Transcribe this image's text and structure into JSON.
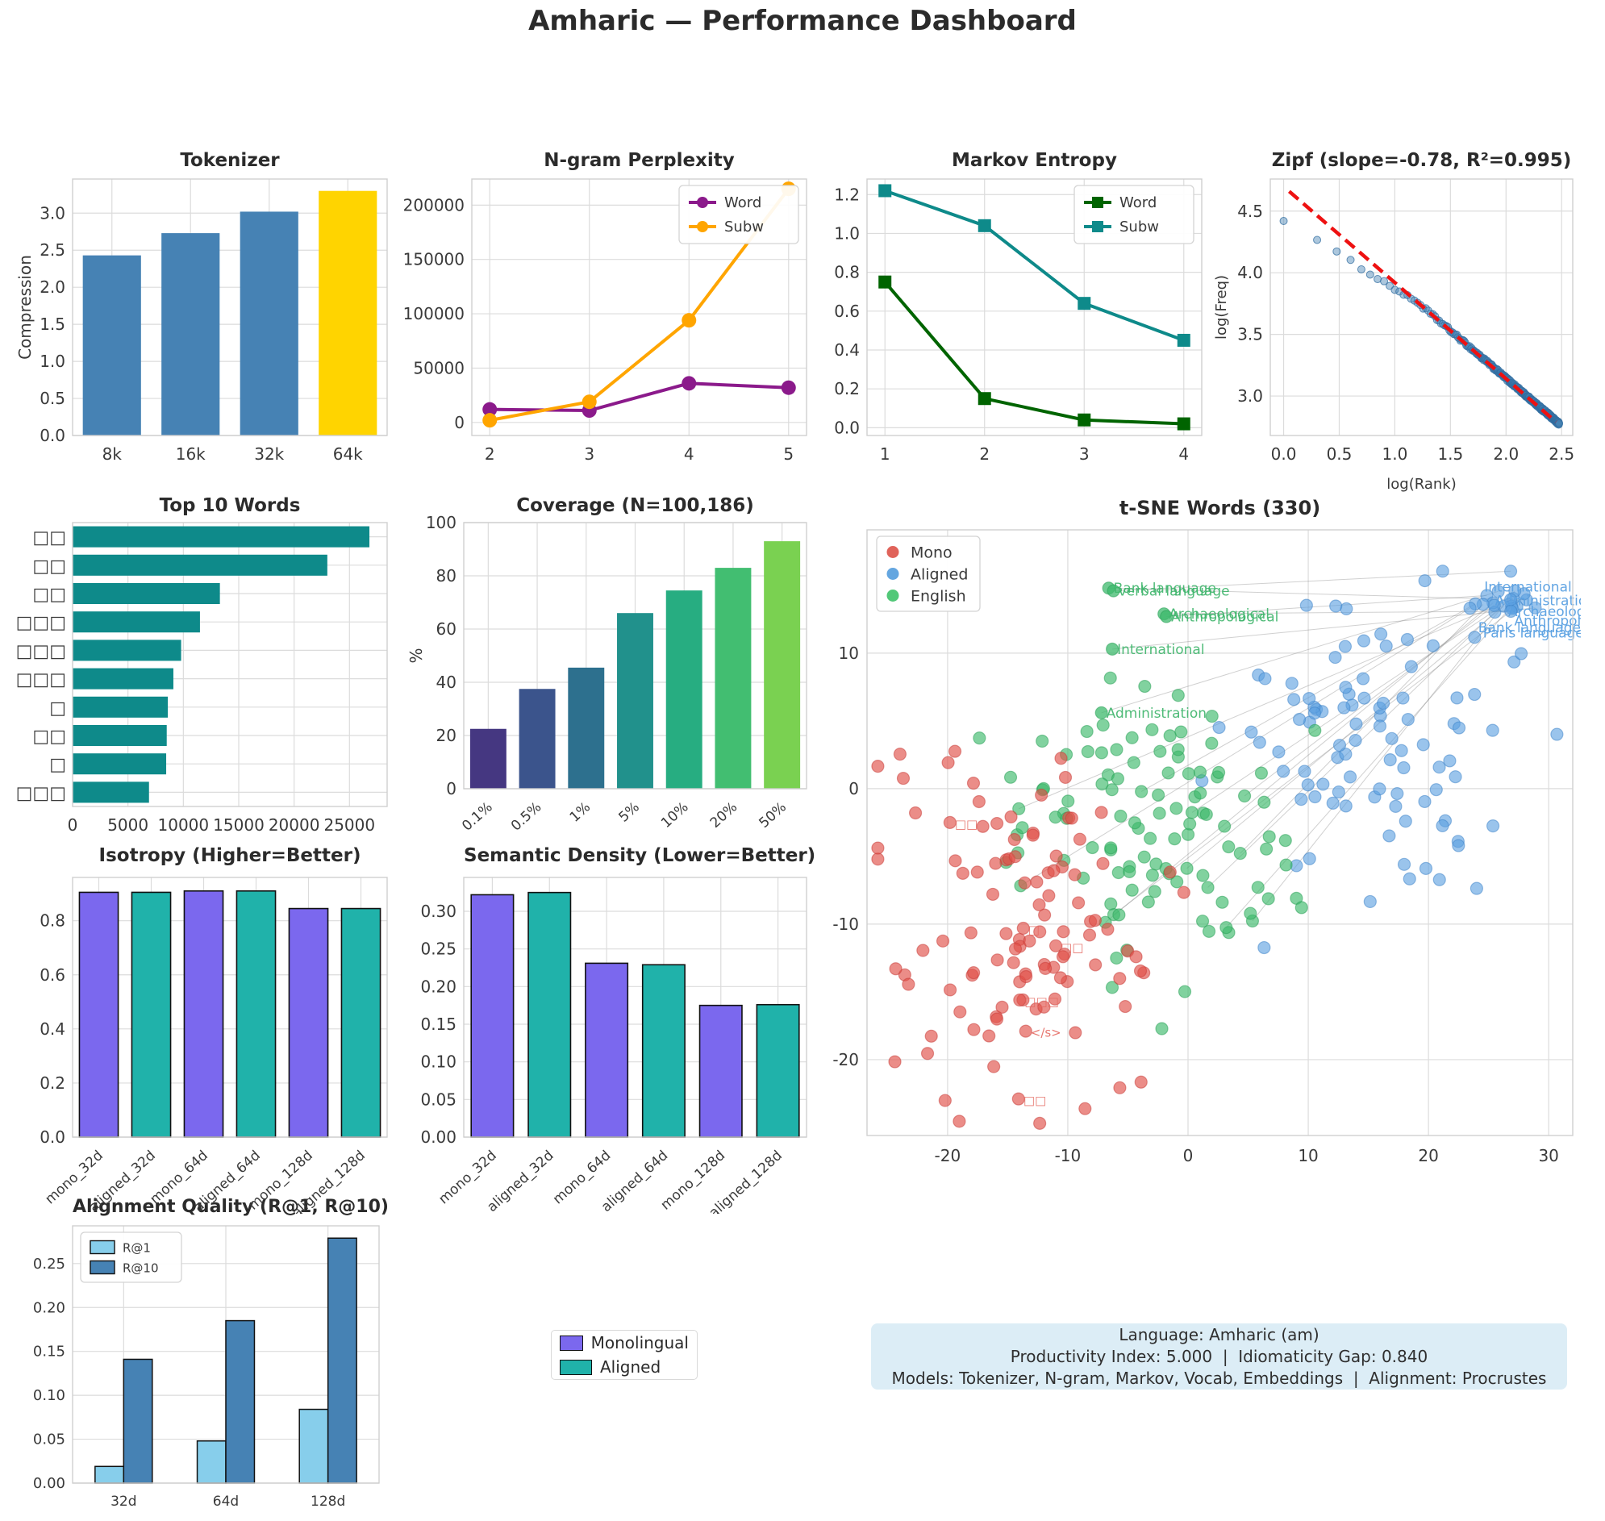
{
  "main_title": "Amharic — Performance Dashboard",
  "legend_box": {
    "entries": [
      {
        "label": "Monolingual",
        "color": "#7b68ee"
      },
      {
        "label": "Aligned",
        "color": "#20b2aa"
      }
    ]
  },
  "info_box": {
    "bg": "#dcedf6",
    "lines": [
      "Language: Amharic (am)",
      "Productivity Index: 5.000  |  Idiomaticity Gap: 0.840",
      "Models: Tokenizer, N-gram, Markov, Vocab, Embeddings  |  Alignment: Procrustes"
    ]
  },
  "chart_data": {
    "tokenizer": {
      "type": "bar",
      "title": "Tokenizer",
      "ylabel": "Compression",
      "categories": [
        "8k",
        "16k",
        "32k",
        "64k"
      ],
      "values": [
        2.43,
        2.73,
        3.02,
        3.3
      ],
      "colors": [
        "#4682b4",
        "#4682b4",
        "#4682b4",
        "#ffd400"
      ],
      "yticks": [
        0.0,
        0.5,
        1.0,
        1.5,
        2.0,
        2.5,
        3.0
      ],
      "ydec": 1,
      "ylim": [
        0,
        3.46
      ]
    },
    "ngram": {
      "type": "line",
      "title": "N-gram Perplexity",
      "x": [
        2,
        3,
        4,
        5
      ],
      "xlim": [
        1.82,
        5.18
      ],
      "series": [
        {
          "name": "Word",
          "color": "#8b1a8b",
          "marker": "circle",
          "values": [
            12000,
            11000,
            36000,
            32000
          ]
        },
        {
          "name": "Subw",
          "color": "#ffa500",
          "marker": "circle",
          "values": [
            2000,
            19000,
            94000,
            215000
          ]
        }
      ],
      "yticks": [
        0,
        50000,
        100000,
        150000,
        200000
      ],
      "ydec": 0,
      "ylim": [
        -12000,
        224000
      ],
      "legend_pos": "tr"
    },
    "markov": {
      "type": "line",
      "title": "Markov Entropy",
      "x": [
        1,
        2,
        3,
        4
      ],
      "xlim": [
        0.82,
        4.18
      ],
      "series": [
        {
          "name": "Word",
          "color": "#006400",
          "marker": "square",
          "values": [
            0.75,
            0.15,
            0.04,
            0.02
          ]
        },
        {
          "name": "Subw",
          "color": "#0e8a8a",
          "marker": "square",
          "values": [
            1.22,
            1.04,
            0.64,
            0.45
          ]
        }
      ],
      "yticks": [
        0.0,
        0.2,
        0.4,
        0.6,
        0.8,
        1.0,
        1.2
      ],
      "ydec": 1,
      "ylim": [
        -0.04,
        1.28
      ],
      "legend_pos": "tr"
    },
    "zipf": {
      "type": "scatter",
      "title": "Zipf (slope=-0.78, R²=0.995)",
      "xlabel": "log(Rank)",
      "ylabel": "log(Freq)",
      "xticks": [
        0.0,
        0.5,
        1.0,
        1.5,
        2.0,
        2.5
      ],
      "yticks": [
        3.0,
        3.5,
        4.0,
        4.5
      ],
      "xlim": [
        -0.12,
        2.6
      ],
      "ylim": [
        2.68,
        4.76
      ],
      "point_color": "rgba(70,130,180,0.45)",
      "point_edge": "rgba(50,110,160,0.75)",
      "fit": {
        "x1": 0.05,
        "y1": 4.66,
        "x2": 2.45,
        "y2": 2.79,
        "color": "#ee1111"
      },
      "model": {
        "ranks": 300,
        "break_x": 1.15,
        "a1": 4.43,
        "b1": 0.56,
        "a2": 4.688,
        "b2": 0.772,
        "jitter": 0.012
      }
    },
    "top_words": {
      "type": "hbar",
      "title": "Top 10 Words",
      "categories": [
        "□□",
        "□□",
        "□□",
        "□□□",
        "□□□",
        "□□□",
        "□",
        "□□",
        "□",
        "□□□"
      ],
      "values": [
        26800,
        23000,
        13300,
        11500,
        9800,
        9100,
        8600,
        8500,
        8450,
        6900
      ],
      "color": "#0e8a8a",
      "xticks": [
        0,
        5000,
        10000,
        15000,
        20000,
        25000
      ],
      "xlim": [
        0,
        28400
      ]
    },
    "coverage": {
      "type": "bar",
      "title": "Coverage (N=100,186)",
      "ylabel": "%",
      "categories": [
        "0.1%",
        "0.5%",
        "1%",
        "5%",
        "10%",
        "20%",
        "50%"
      ],
      "values": [
        22.5,
        37.5,
        45.5,
        66,
        74.5,
        83,
        93
      ],
      "colors": [
        "#453781",
        "#3b548c",
        "#2d708e",
        "#21918c",
        "#27ad81",
        "#42be71",
        "#7ad151"
      ],
      "yticks": [
        0,
        20,
        40,
        60,
        80,
        100
      ],
      "ydec": 0,
      "ylim": [
        0,
        100
      ],
      "rotate_cats": true
    },
    "tsne": {
      "type": "scatter_clusters",
      "title": "t-SNE Words (330)",
      "n_points": 330,
      "xlim": [
        -26.7,
        32.0
      ],
      "ylim": [
        -25.6,
        19.1
      ],
      "xticks": [
        -20,
        -10,
        0,
        10,
        20,
        30
      ],
      "yticks": [
        -20,
        -10,
        0,
        10
      ],
      "legend": [
        {
          "label": "Mono",
          "color": "#e0635a"
        },
        {
          "label": "Aligned",
          "color": "#64a6e0"
        },
        {
          "label": "English",
          "color": "#52c878"
        }
      ],
      "clusters": [
        {
          "name": "mono",
          "color": "rgba(224,80,72,0.65)",
          "edge": "rgba(200,60,55,0.5)",
          "n": 105,
          "cx": -13.5,
          "cy": -10.5,
          "sx": 5.6,
          "sy": 6.2
        },
        {
          "name": "english",
          "color": "rgba(62,186,108,0.65)",
          "edge": "rgba(40,160,85,0.5)",
          "n": 110,
          "cx": -3.0,
          "cy": -3.0,
          "sx": 5.8,
          "sy": 5.4
        },
        {
          "name": "aligned",
          "color": "rgba(92,160,224,0.62)",
          "edge": "rgba(60,130,200,0.5)",
          "n": 95,
          "cx": 14.5,
          "cy": 3.5,
          "sx": 6.2,
          "sy": 5.2
        },
        {
          "name": "aligned_tight",
          "color": "rgba(92,160,224,0.62)",
          "edge": "rgba(60,130,200,0.5)",
          "n": 20,
          "cx": 26.0,
          "cy": 13.8,
          "sx": 1.3,
          "sy": 0.9
        }
      ],
      "n_connections": 18,
      "annotations_green": [
        {
          "text": "Bank language",
          "x": -6.6,
          "y": 14.8
        },
        {
          "text": "verbal language",
          "x": -6.2,
          "y": 14.6
        },
        {
          "text": "Archaeological",
          "x": -2.0,
          "y": 12.9
        },
        {
          "text": "Anthropological",
          "x": -1.8,
          "y": 12.7
        },
        {
          "text": "International",
          "x": -6.3,
          "y": 10.3
        },
        {
          "text": "Administration",
          "x": -7.2,
          "y": 5.6
        }
      ],
      "annotations_blue": [
        {
          "text": "International",
          "x": 24.3,
          "y": 14.9
        },
        {
          "text": "Administration.",
          "x": 25.2,
          "y": 13.9
        },
        {
          "text": "Archaeological",
          "x": 26.3,
          "y": 13.1
        },
        {
          "text": "Anthropological",
          "x": 26.8,
          "y": 12.4
        },
        {
          "text": "Bank language",
          "x": 23.8,
          "y": 11.9
        },
        {
          "text": "Paris language",
          "x": 24.2,
          "y": 11.5
        }
      ],
      "annotations_red": [
        {
          "text": "□□",
          "x": -19.8,
          "y": -2.5
        },
        {
          "text": "□",
          "x": -13.7,
          "y": -10.3
        },
        {
          "text": "□□",
          "x": -11.0,
          "y": -11.6
        },
        {
          "text": "□□□",
          "x": -14.0,
          "y": -15.6
        },
        {
          "text": "</s>",
          "x": -13.5,
          "y": -17.9
        },
        {
          "text": "□□",
          "x": -14.1,
          "y": -22.9
        }
      ]
    },
    "isotropy": {
      "type": "bar",
      "title": "Isotropy (Higher=Better)",
      "categories": [
        "mono_32d",
        "aligned_32d",
        "mono_64d",
        "aligned_64d",
        "mono_128d",
        "aligned_128d"
      ],
      "values": [
        0.905,
        0.905,
        0.91,
        0.91,
        0.845,
        0.845
      ],
      "colors": [
        "#7b68ee",
        "#20b2aa",
        "#7b68ee",
        "#20b2aa",
        "#7b68ee",
        "#20b2aa"
      ],
      "edge": "#111111",
      "yticks": [
        0.0,
        0.2,
        0.4,
        0.6,
        0.8
      ],
      "ydec": 1,
      "ylim": [
        0,
        0.96
      ],
      "rotate_cats": true
    },
    "semantic_density": {
      "type": "bar",
      "title": "Semantic Density (Lower=Better)",
      "categories": [
        "mono_32d",
        "aligned_32d",
        "mono_64d",
        "aligned_64d",
        "mono_128d",
        "aligned_128d"
      ],
      "values": [
        0.322,
        0.325,
        0.231,
        0.229,
        0.175,
        0.176
      ],
      "colors": [
        "#7b68ee",
        "#20b2aa",
        "#7b68ee",
        "#20b2aa",
        "#7b68ee",
        "#20b2aa"
      ],
      "edge": "#111111",
      "yticks": [
        0.0,
        0.05,
        0.1,
        0.15,
        0.2,
        0.25,
        0.3
      ],
      "ydec": 2,
      "ylim": [
        0,
        0.345
      ],
      "rotate_cats": true
    },
    "alignment": {
      "type": "grouped_bar",
      "title": "Alignment Quality (R@1, R@10)",
      "categories": [
        "32d",
        "64d",
        "128d"
      ],
      "series": [
        {
          "name": "R@1",
          "color": "#87ceeb",
          "values": [
            0.019,
            0.048,
            0.084
          ]
        },
        {
          "name": "R@10",
          "color": "#4682b4",
          "values": [
            0.141,
            0.185,
            0.279
          ]
        }
      ],
      "edge": "#111111",
      "yticks": [
        0.0,
        0.05,
        0.1,
        0.15,
        0.2,
        0.25
      ],
      "ydec": 2,
      "ylim": [
        0,
        0.293
      ]
    }
  }
}
